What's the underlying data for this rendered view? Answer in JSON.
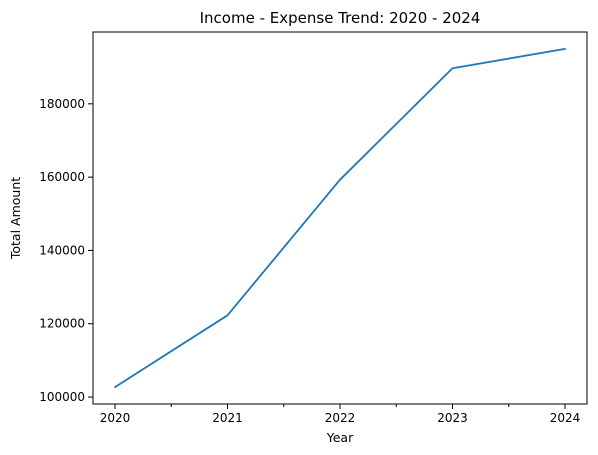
{
  "chart_data": {
    "type": "line",
    "title": "Income - Expense Trend: 2020 - 2024",
    "xlabel": "Year",
    "ylabel": "Total Amount",
    "x": [
      "2020",
      "2021",
      "2022",
      "2023",
      "2024"
    ],
    "series": [
      {
        "values": [
          102700,
          122300,
          159300,
          189700,
          195000
        ],
        "color": "#1f77b4"
      }
    ],
    "yticks": [
      "100000",
      "120000",
      "140000",
      "160000",
      "180000"
    ],
    "ylim": [
      98100,
      199600
    ],
    "grid": false,
    "legend": "none"
  }
}
